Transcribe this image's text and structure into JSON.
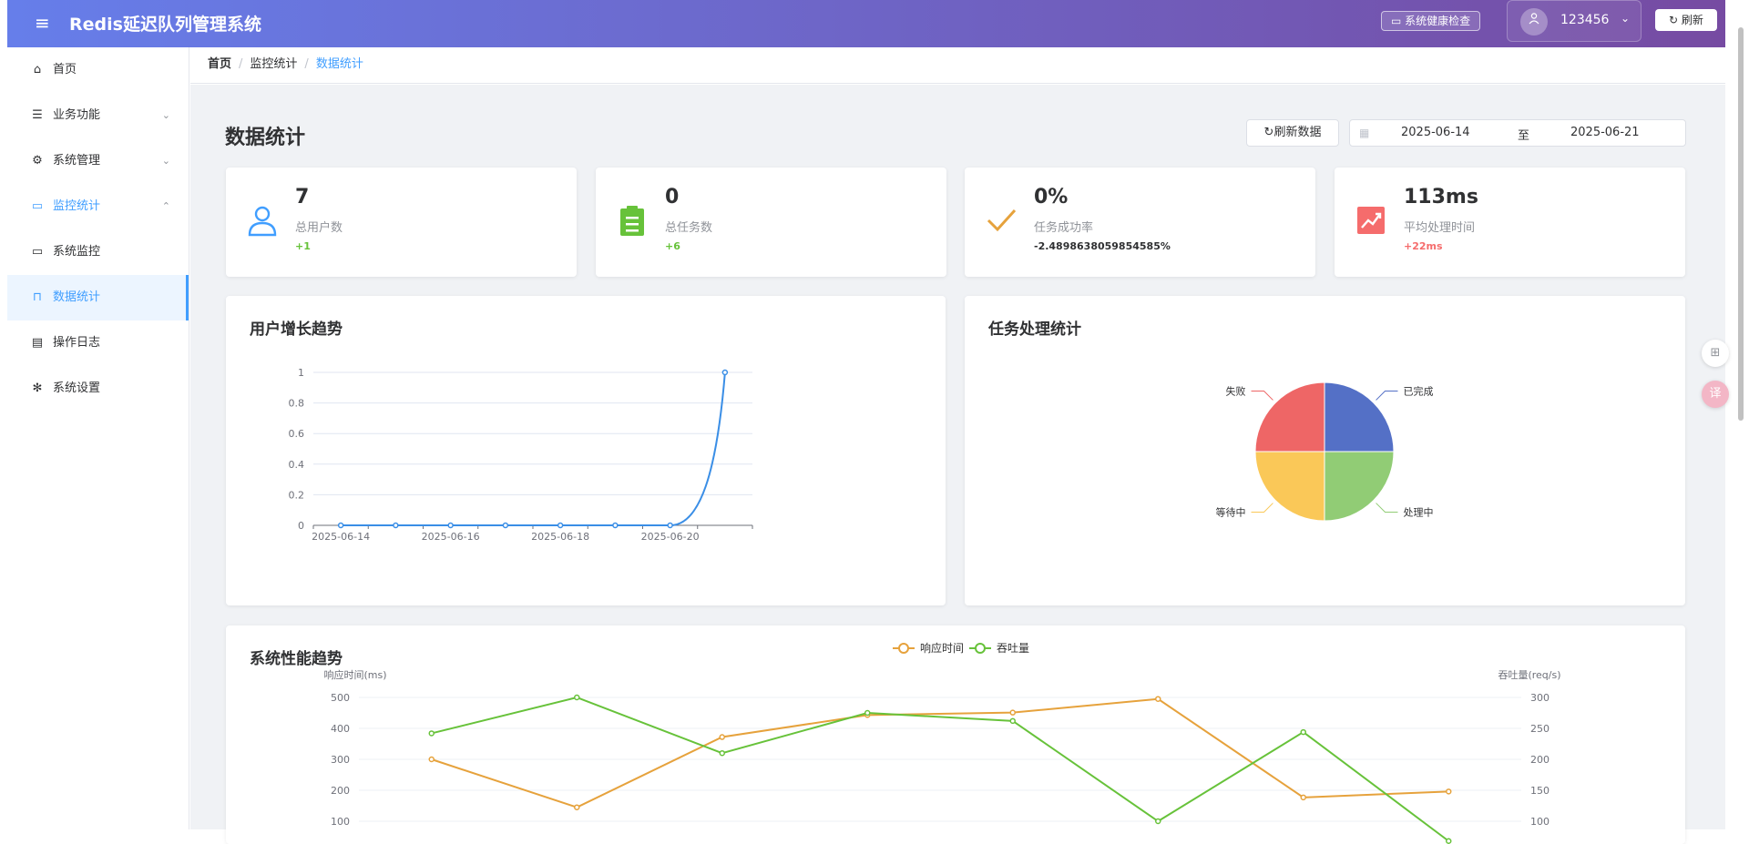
{
  "header": {
    "title": "Redis延迟队列管理系统",
    "health_check": "系统健康检查",
    "username": "123456",
    "refresh": "刷新"
  },
  "sidebar": {
    "items": [
      {
        "label": "首页",
        "icon": "home-icon"
      },
      {
        "label": "业务功能",
        "icon": "sliders-icon",
        "expandable": true
      },
      {
        "label": "系统管理",
        "icon": "gear-icon",
        "expandable": true
      },
      {
        "label": "监控统计",
        "icon": "monitor-icon",
        "expandable": true,
        "expanded": true
      },
      {
        "label": "系统监控",
        "icon": "monitor-icon"
      },
      {
        "label": "数据统计",
        "icon": "board-icon",
        "active": true
      },
      {
        "label": "操作日志",
        "icon": "document-icon"
      },
      {
        "label": "系统设置",
        "icon": "cog-icon"
      }
    ]
  },
  "breadcrumb": [
    "首页",
    "监控统计",
    "数据统计"
  ],
  "page": {
    "title": "数据统计",
    "reload_label": "刷新数据",
    "date_start": "2025-06-14",
    "date_separator": "至",
    "date_end": "2025-06-21"
  },
  "stats": [
    {
      "value": "7",
      "label": "总用户数",
      "change": "+1",
      "color": "#409eff",
      "icon": "user-icon"
    },
    {
      "value": "0",
      "label": "总任务数",
      "change": "+6",
      "color": "#67c23a",
      "icon": "clipboard-icon"
    },
    {
      "value": "0%",
      "label": "任务成功率",
      "change": "-2.4898638059854585%",
      "color": "#e6a23c",
      "icon": "check-icon"
    },
    {
      "value": "113ms",
      "label": "平均处理时间",
      "change": "+22ms",
      "color": "#f56c6c",
      "icon": "trend-icon"
    }
  ],
  "panels": {
    "user_growth_title": "用户增长趋势",
    "task_title": "任务处理统计",
    "perf_title": "系统性能趋势"
  },
  "chart_data": [
    {
      "type": "line",
      "title": "用户增长趋势",
      "x": [
        "2025-06-14",
        "2025-06-15",
        "2025-06-16",
        "2025-06-17",
        "2025-06-18",
        "2025-06-19",
        "2025-06-20",
        "2025-06-21"
      ],
      "xticks": [
        "2025-06-14",
        "2025-06-16",
        "2025-06-18",
        "2025-06-20"
      ],
      "values": [
        0,
        0,
        0,
        0,
        0,
        0,
        0,
        1
      ],
      "yticks": [
        0,
        0.2,
        0.4,
        0.6,
        0.8,
        1
      ],
      "ylim": [
        0,
        1
      ],
      "color": "#3a8ee6",
      "smooth": true,
      "grid": true
    },
    {
      "type": "pie",
      "title": "任务处理统计",
      "slices": [
        {
          "label": "已完成",
          "value": 1,
          "color": "#5470c6"
        },
        {
          "label": "处理中",
          "value": 1,
          "color": "#91cc75"
        },
        {
          "label": "等待中",
          "value": 1,
          "color": "#fac858"
        },
        {
          "label": "失败",
          "value": 1,
          "color": "#ee6666"
        }
      ]
    },
    {
      "type": "line",
      "title": "系统性能趋势",
      "legend": [
        "响应时间",
        "吞吐量"
      ],
      "legend_position": "top-center",
      "y_left_label": "响应时间(ms)",
      "y_right_label": "吞吐量(req/s)",
      "y_left_ticks": [
        100,
        200,
        300,
        400,
        500
      ],
      "y_right_ticks": [
        100,
        150,
        200,
        250,
        300
      ],
      "series": [
        {
          "name": "响应时间",
          "axis": "left",
          "color": "#e6a23c",
          "values": [
            300,
            145,
            372,
            443,
            451,
            495,
            177,
            196
          ]
        },
        {
          "name": "吞吐量",
          "axis": "right",
          "color": "#67c23a",
          "values": [
            242,
            300,
            210,
            275,
            262,
            100,
            244,
            68
          ]
        }
      ],
      "grid": true
    }
  ],
  "colors": {
    "accent": "#409eff",
    "header_start": "#667eea",
    "header_end": "#764ba2"
  }
}
